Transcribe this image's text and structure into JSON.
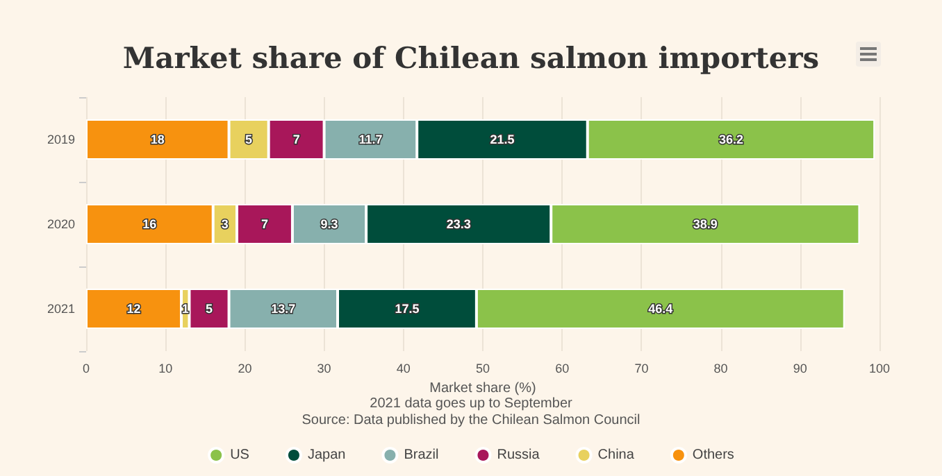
{
  "chart_data": {
    "type": "bar",
    "title": "Market share of Chilean salmon importers",
    "xlabel": "Market share (%)",
    "annotations": [
      "2021 data goes up to September",
      "Source: Data published by the Chilean Salmon Council"
    ],
    "orientation": "horizontal",
    "stacked": true,
    "categories": [
      "2019",
      "2020",
      "2021"
    ],
    "series": [
      {
        "name": "Others",
        "color": "#f7920f",
        "values": [
          18,
          16,
          12
        ]
      },
      {
        "name": "China",
        "color": "#e8d15e",
        "values": [
          5,
          3,
          1
        ]
      },
      {
        "name": "Russia",
        "color": "#a8175a",
        "values": [
          7,
          7,
          5
        ]
      },
      {
        "name": "Brazil",
        "color": "#87b0ad",
        "values": [
          11.7,
          9.3,
          13.7
        ]
      },
      {
        "name": "Japan",
        "color": "#004d3b",
        "values": [
          21.5,
          23.3,
          17.5
        ]
      },
      {
        "name": "US",
        "color": "#8bc24a",
        "values": [
          36.2,
          38.9,
          46.4
        ]
      }
    ],
    "xlim": [
      0,
      100
    ],
    "xticks": [
      0,
      10,
      20,
      30,
      40,
      50,
      60,
      70,
      80,
      90,
      100
    ],
    "grid": "x",
    "legend": "bottom",
    "data_labels": true
  }
}
